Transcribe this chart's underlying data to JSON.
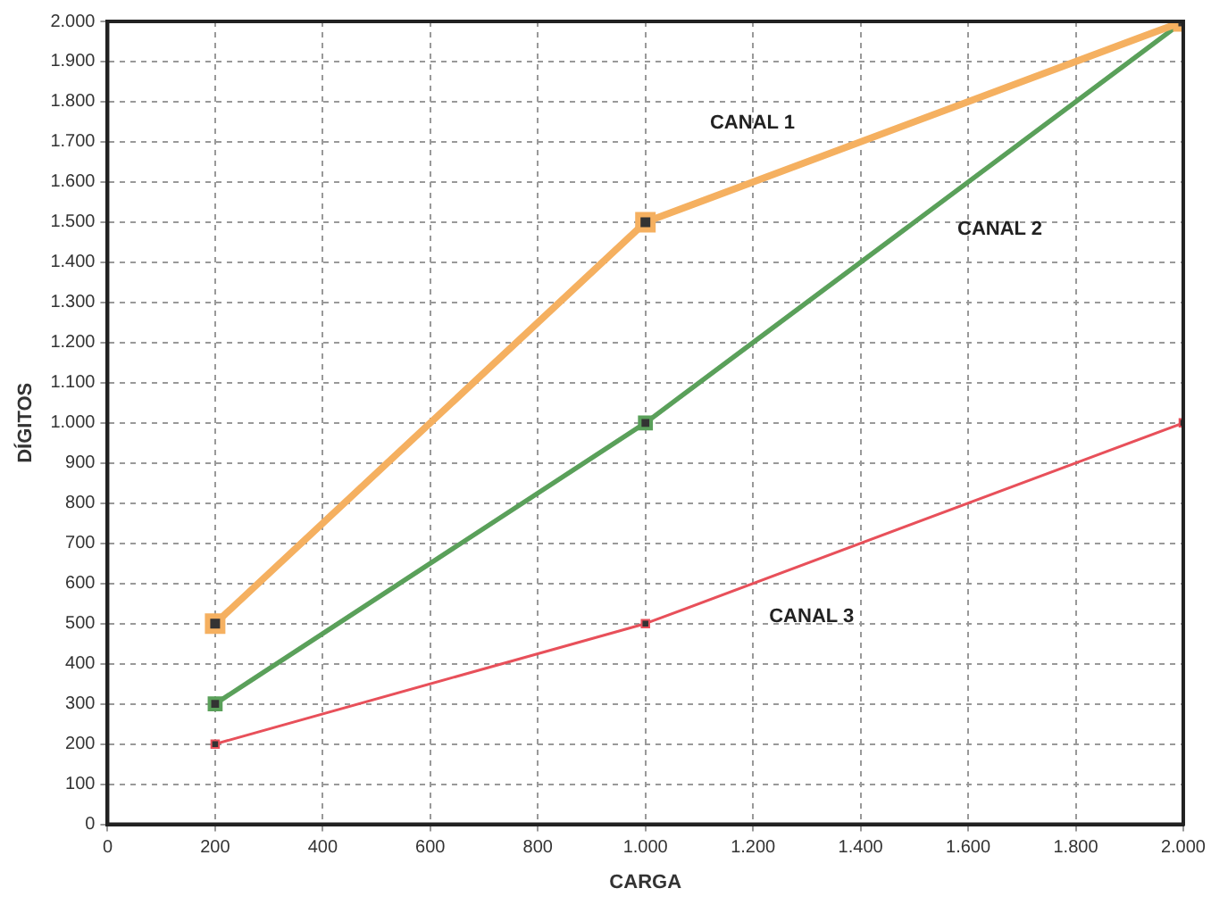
{
  "chart_data": {
    "type": "line",
    "xlabel": "CARGA",
    "ylabel": "DÍGITOS",
    "xlim": [
      0,
      2000
    ],
    "ylim": [
      0,
      2000
    ],
    "xticks": [
      0,
      200,
      400,
      600,
      800,
      {
        "value": 1000,
        "label": "1.000"
      },
      {
        "value": 1200,
        "label": "1.200"
      },
      {
        "value": 1400,
        "label": "1.400"
      },
      {
        "value": 1600,
        "label": "1.600"
      },
      {
        "value": 1800,
        "label": "1.800"
      },
      {
        "value": 2000,
        "label": "2.000"
      }
    ],
    "yticks": [
      0,
      100,
      200,
      300,
      400,
      500,
      600,
      700,
      800,
      900,
      {
        "value": 1000,
        "label": "1.000"
      },
      {
        "value": 1100,
        "label": "1.100"
      },
      {
        "value": 1200,
        "label": "1.200"
      },
      {
        "value": 1300,
        "label": "1.300"
      },
      {
        "value": 1400,
        "label": "1.400"
      },
      {
        "value": 1500,
        "label": "1.500"
      },
      {
        "value": 1600,
        "label": "1.600"
      },
      {
        "value": 1700,
        "label": "1.700"
      },
      {
        "value": 1800,
        "label": "1.800"
      },
      {
        "value": 1900,
        "label": "1.900"
      },
      {
        "value": 2000,
        "label": "2.000"
      }
    ],
    "x": [
      200,
      1000,
      2000
    ],
    "series": [
      {
        "name": "CANAL 1",
        "color": "#f5b060",
        "values": [
          500,
          1500,
          2000
        ]
      },
      {
        "name": "CANAL 2",
        "color": "#5aa05a",
        "values": [
          300,
          1000,
          2000
        ]
      },
      {
        "name": "CANAL 3",
        "color": "#e8505a",
        "values": [
          200,
          500,
          1000
        ]
      }
    ],
    "grid": true,
    "legend": false,
    "marker": "square",
    "line_style": "solid"
  }
}
